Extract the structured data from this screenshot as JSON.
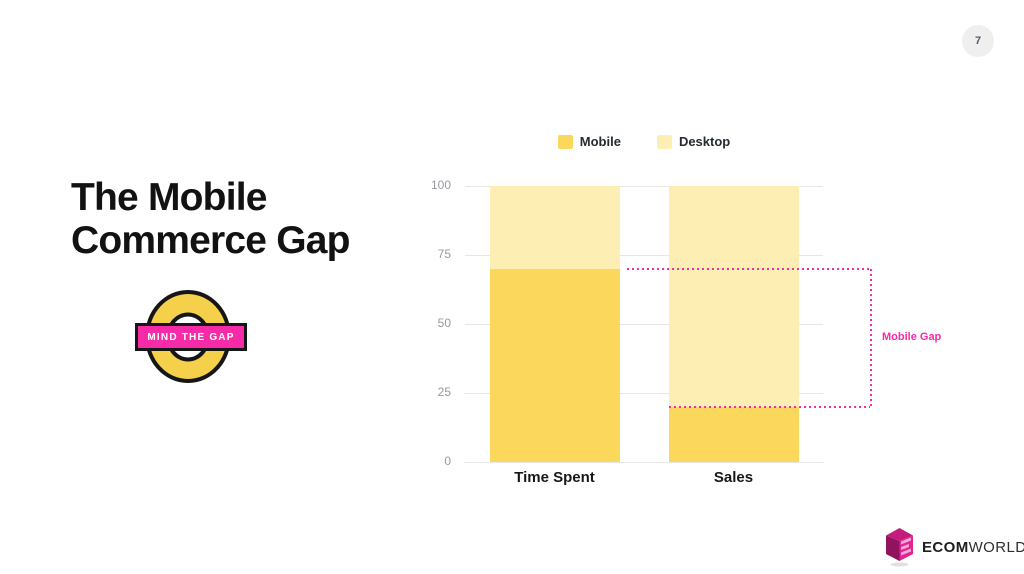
{
  "slide": {
    "page_number": "7",
    "title_lines": [
      "The Mobile",
      "Commerce Gap"
    ],
    "badge_text": "MIND THE GAP"
  },
  "logo": {
    "bold": "ECOM",
    "light": "WORLD"
  },
  "colors": {
    "mobile": "#FBD75B",
    "desktop": "#FDEFB4",
    "pink": "#F72BA8",
    "roundel_yellow": "#F5D04B",
    "grid": "#E7E7E7",
    "tick": "#97999E"
  },
  "chart_data": {
    "type": "bar",
    "stacked": true,
    "categories": [
      "Time Spent",
      "Sales"
    ],
    "series": [
      {
        "name": "Mobile",
        "color": "#FBD75B",
        "values": [
          70,
          20
        ]
      },
      {
        "name": "Desktop",
        "color": "#FDEFB4",
        "values": [
          30,
          80
        ]
      }
    ],
    "ylim": [
      0,
      100
    ],
    "yticks": [
      0,
      25,
      50,
      75,
      100
    ],
    "grid": true,
    "legend_position": "top",
    "annotation": {
      "label": "Mobile Gap",
      "series": "Mobile",
      "from_category": "Time Spent",
      "to_category": "Sales"
    }
  }
}
